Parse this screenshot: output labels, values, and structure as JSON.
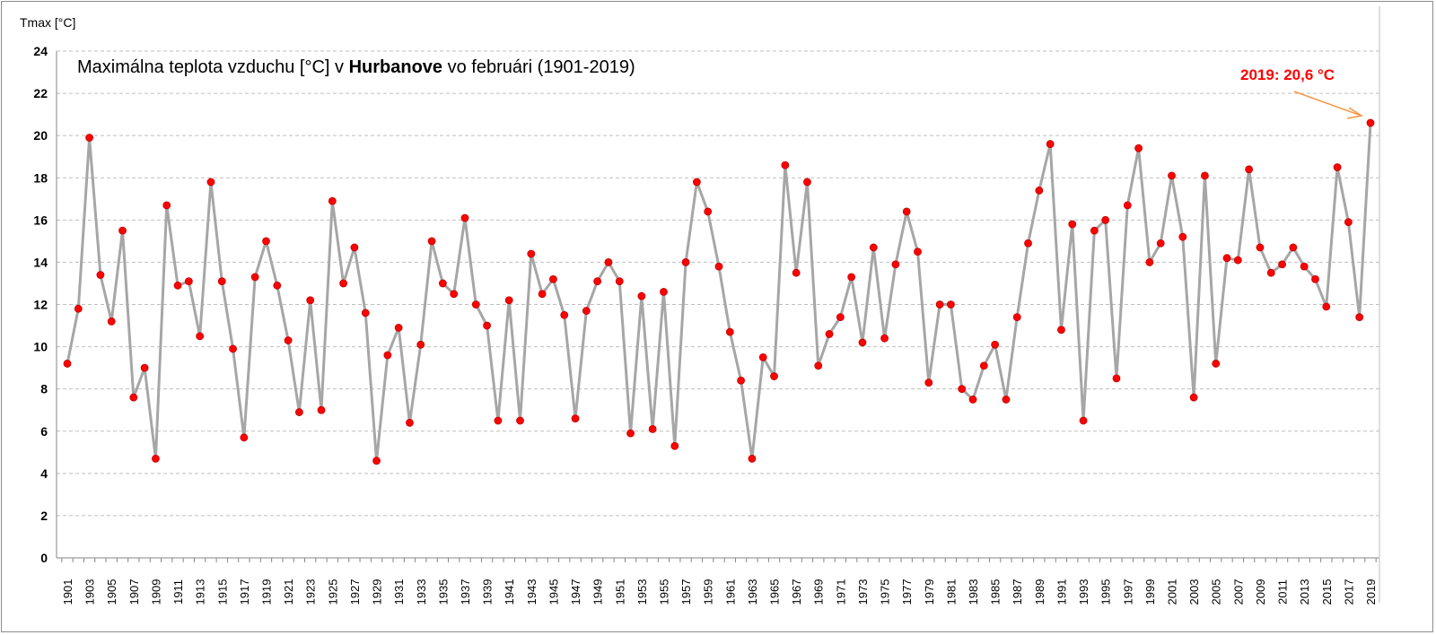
{
  "chart_data": {
    "type": "line",
    "title_parts": {
      "before": "Maximálna teplota vzduchu [°C] v ",
      "bold": "Hurbanove",
      "after": " vo februári (1901-2019)"
    },
    "ylabel": "Tmax [°C]",
    "xlabel": "",
    "ylim": [
      0,
      24
    ],
    "yticks": [
      "0",
      "2",
      "4",
      "6",
      "8",
      "10",
      "12",
      "14",
      "16",
      "18",
      "20",
      "22",
      "24"
    ],
    "grid": "horizontal dashed",
    "line_color": "#a6a6a6",
    "marker_color": "#ff0000",
    "annotation": {
      "text": "2019: 20,6 °C",
      "color": "#ff0000",
      "arrow_color": "#f79646",
      "target_year": 2019
    },
    "x_start": 1901,
    "values": [
      9.2,
      11.8,
      19.9,
      13.4,
      11.2,
      15.5,
      7.6,
      9.0,
      4.7,
      16.7,
      12.9,
      13.1,
      10.5,
      17.8,
      13.1,
      9.9,
      5.7,
      13.3,
      15.0,
      12.9,
      10.3,
      6.9,
      12.2,
      7.0,
      16.9,
      13.0,
      14.7,
      11.6,
      4.6,
      9.6,
      10.9,
      6.4,
      10.1,
      15.0,
      13.0,
      12.5,
      16.1,
      12.0,
      11.0,
      6.5,
      12.2,
      6.5,
      14.4,
      12.5,
      13.2,
      11.5,
      6.6,
      11.7,
      13.1,
      14.0,
      13.1,
      5.9,
      12.4,
      6.1,
      12.6,
      5.3,
      14.0,
      17.8,
      16.4,
      13.8,
      10.7,
      8.4,
      4.7,
      9.5,
      8.6,
      18.6,
      13.5,
      17.8,
      9.1,
      10.6,
      11.4,
      13.3,
      10.2,
      14.7,
      10.4,
      13.9,
      16.4,
      14.5,
      8.3,
      12.0,
      12.0,
      8.0,
      7.5,
      9.1,
      10.1,
      7.5,
      11.4,
      14.9,
      17.4,
      19.6,
      10.8,
      15.8,
      6.5,
      15.5,
      16.0,
      8.5,
      16.7,
      19.4,
      14.0,
      14.9,
      18.1,
      15.2,
      7.6,
      18.1,
      9.2,
      14.2,
      14.1,
      18.4,
      14.7,
      13.5,
      13.9,
      14.7,
      13.8,
      13.2,
      11.9,
      18.5,
      15.9,
      11.4,
      20.6
    ]
  }
}
